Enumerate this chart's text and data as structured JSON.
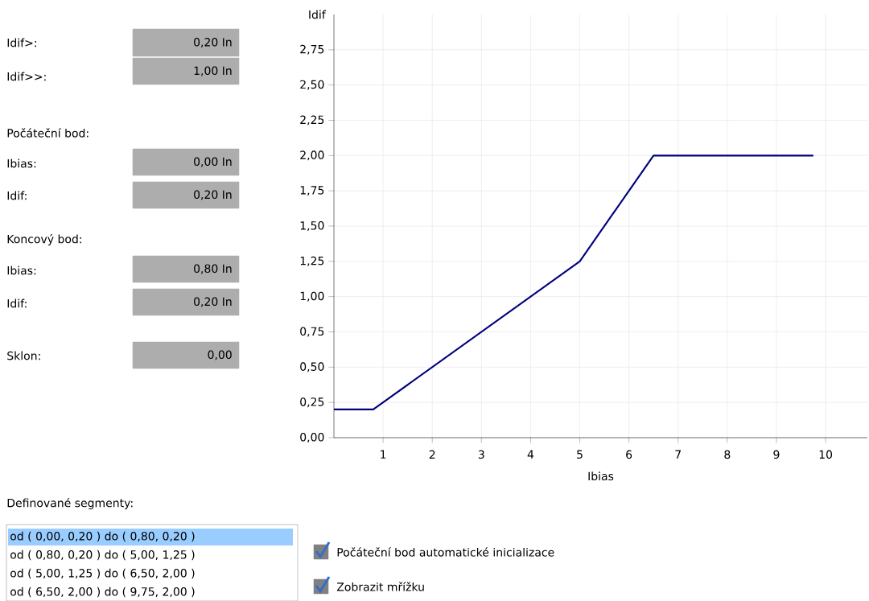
{
  "chart_data": {
    "type": "line",
    "xlabel": "Ibias",
    "ylabel": "Idif",
    "x": [
      0,
      0.8,
      5,
      6.5,
      9.75
    ],
    "series": [
      {
        "color": "#000080",
        "values": [
          0.2,
          0.2,
          1.25,
          2,
          2
        ]
      }
    ],
    "xlim": [
      0,
      10.85
    ],
    "ylim": [
      0,
      3
    ],
    "xticks": [
      1,
      2,
      3,
      4,
      5,
      6,
      7,
      8,
      9,
      10
    ],
    "yticks": [
      {
        "value": 0,
        "label": "0,00"
      },
      {
        "value": 0.25,
        "label": "0,25"
      },
      {
        "value": 0.5,
        "label": "0,50"
      },
      {
        "value": 0.75,
        "label": "0,75"
      },
      {
        "value": 1,
        "label": "1,00"
      },
      {
        "value": 1.25,
        "label": "1,25"
      },
      {
        "value": 1.5,
        "label": "1,50"
      },
      {
        "value": 1.75,
        "label": "1,75"
      },
      {
        "value": 2,
        "label": "2,00"
      },
      {
        "value": 2.25,
        "label": "2,25"
      },
      {
        "value": 2.5,
        "label": "2,50"
      },
      {
        "value": 2.75,
        "label": "2,75"
      }
    ],
    "grid": true,
    "marker": "none",
    "line_style": "solid",
    "annotations": [
      "Idif>:",
      "0,20 In",
      "Idif>>:",
      "1,00 In",
      "Počáteční bod:",
      "Ibias:",
      "0,00 In",
      "Idif:",
      "0,20 In",
      "Koncový bod:",
      "Ibias:",
      "0,80 In",
      "Idif:",
      "0,20 In",
      "Sklon:",
      "0,00",
      "Definované segmenty:",
      "od ( 0,00, 0,20 ) do ( 0,80, 0,20 )",
      "od ( 0,80, 0,20 ) do ( 5,00, 1,25 )",
      "od ( 5,00, 1,25 ) do ( 6,50, 2,00 )",
      "od ( 6,50, 2,00 ) do ( 9,75, 2,00 )",
      "Počáteční bod automatické inicializace",
      "Zobrazit mřížku"
    ]
  }
}
